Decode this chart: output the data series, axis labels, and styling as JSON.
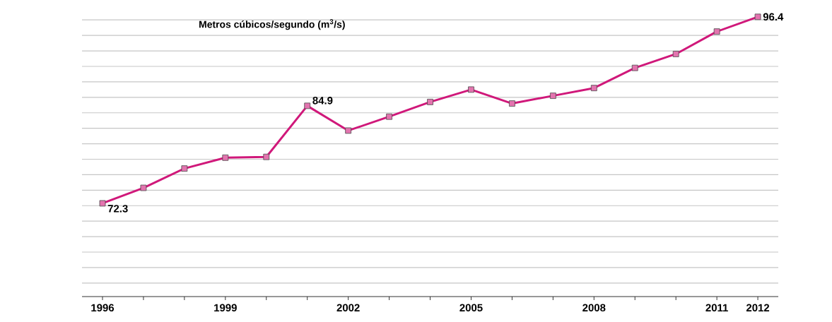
{
  "chart_data": {
    "type": "line",
    "ylabel": "Metros cúbicos/segundo (m$^{3}$/s)",
    "categories": [
      "1996",
      null,
      null,
      "1999",
      null,
      null,
      "2002",
      null,
      null,
      "2005",
      null,
      null,
      "2008",
      null,
      null,
      "2011",
      "2012"
    ],
    "values": [
      72.3,
      74.3,
      76.8,
      78.2,
      78.3,
      84.9,
      81.7,
      83.5,
      85.4,
      87.0,
      85.2,
      86.2,
      87.2,
      89.8,
      91.6,
      94.5,
      96.4
    ],
    "value_labels": [
      "72.3",
      null,
      null,
      null,
      null,
      "84.9",
      null,
      null,
      null,
      null,
      null,
      null,
      null,
      null,
      null,
      null,
      "96.4"
    ],
    "color": "#d0187a",
    "marker": "square",
    "line_style": "solid",
    "grid": "y",
    "tick_labels": "x"
  }
}
